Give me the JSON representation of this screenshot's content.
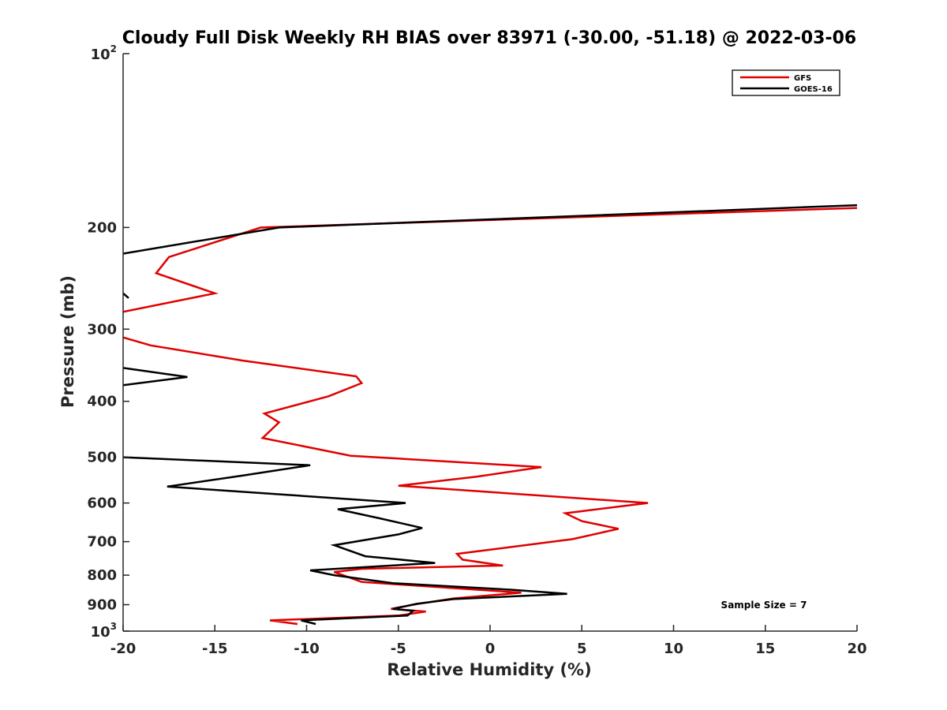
{
  "chart_data": {
    "type": "line",
    "title": "Cloudy Full Disk Weekly RH BIAS over 83971 (-30.00, -51.18) @ 2022-03-06",
    "xlabel": "Relative Humidity (%)",
    "ylabel": "Pressure (mb)",
    "xlim": [
      -20,
      20
    ],
    "ylim": [
      100,
      1000
    ],
    "y_scale": "log",
    "y_reversed": true,
    "grid": false,
    "legend_position": "top-right",
    "x_ticks": [
      "-20",
      "-15",
      "-10",
      "-5",
      "0",
      "5",
      "10",
      "15",
      "20"
    ],
    "y_ticks": [
      {
        "value": 100,
        "base": "10",
        "exp": "2"
      },
      {
        "value": 200,
        "label": "200"
      },
      {
        "value": 300,
        "label": "300"
      },
      {
        "value": 400,
        "label": "400"
      },
      {
        "value": 500,
        "label": "500"
      },
      {
        "value": 600,
        "label": "600"
      },
      {
        "value": 700,
        "label": "700"
      },
      {
        "value": 800,
        "label": "800"
      },
      {
        "value": 900,
        "label": "900"
      },
      {
        "value": 1000,
        "base": "10",
        "exp": "3"
      }
    ],
    "series": [
      {
        "name": "GFS",
        "color": "#e00000",
        "points": [
          [
            20,
            185
          ],
          [
            -12.5,
            200
          ],
          [
            -17.5,
            225
          ],
          [
            -18.2,
            240
          ],
          [
            -15.0,
            260
          ],
          [
            -20.0,
            280
          ],
          [
            null,
            290
          ],
          [
            -20.0,
            310
          ],
          [
            -18.5,
            320
          ],
          [
            -13.5,
            340
          ],
          [
            -7.3,
            362
          ],
          [
            -7.0,
            372
          ],
          [
            -8.8,
            392
          ],
          [
            -12.3,
            420
          ],
          [
            -11.5,
            435
          ],
          [
            -12.4,
            463
          ],
          [
            -7.6,
            497
          ],
          [
            2.8,
            520
          ],
          [
            -0.7,
            540
          ],
          [
            -5.0,
            560
          ],
          [
            8.6,
            600
          ],
          [
            4.1,
            625
          ],
          [
            5.0,
            645
          ],
          [
            7.0,
            665
          ],
          [
            4.5,
            693
          ],
          [
            -1.8,
            735
          ],
          [
            -1.5,
            752
          ],
          [
            0.7,
            770
          ],
          [
            -7.0,
            780
          ],
          [
            -8.5,
            790
          ],
          [
            -7.0,
            822
          ],
          [
            1.7,
            858
          ],
          [
            -2.0,
            878
          ],
          [
            -4.0,
            898
          ],
          [
            -5.4,
            915
          ],
          [
            -3.5,
            925
          ],
          [
            -5.0,
            940
          ],
          [
            -12.0,
            958
          ],
          [
            -10.5,
            972
          ]
        ]
      },
      {
        "name": "GOES-16",
        "color": "#000000",
        "points": [
          [
            20,
            183
          ],
          [
            -11.5,
            200
          ],
          [
            -20.0,
            222
          ],
          [
            null,
            240
          ],
          [
            -20.0,
            260
          ],
          [
            -19.7,
            265
          ],
          [
            null,
            310
          ],
          [
            -20.0,
            350
          ],
          [
            -16.5,
            363
          ],
          [
            -20.0,
            375
          ],
          [
            null,
            440
          ],
          [
            -20.0,
            500
          ],
          [
            -9.8,
            516
          ],
          [
            -13.5,
            538
          ],
          [
            -17.6,
            562
          ],
          [
            -4.6,
            600
          ],
          [
            -8.3,
            615
          ],
          [
            -6.0,
            638
          ],
          [
            -3.7,
            663
          ],
          [
            -5.0,
            680
          ],
          [
            -8.5,
            710
          ],
          [
            -6.8,
            742
          ],
          [
            -3.0,
            762
          ],
          [
            -9.8,
            785
          ],
          [
            -8.5,
            800
          ],
          [
            -5.3,
            826
          ],
          [
            1.2,
            848
          ],
          [
            4.2,
            862
          ],
          [
            -2.0,
            880
          ],
          [
            -4.0,
            897
          ],
          [
            -5.3,
            915
          ],
          [
            -4.2,
            922
          ],
          [
            -4.5,
            940
          ],
          [
            -10.3,
            958
          ],
          [
            -9.5,
            972
          ]
        ]
      }
    ],
    "annotation": "Sample Size = 7"
  }
}
